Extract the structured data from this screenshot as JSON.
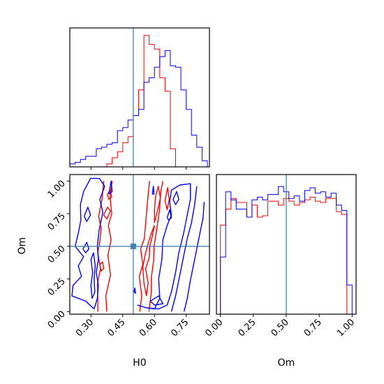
{
  "colors": {
    "series_a": "#ff0000",
    "series_b": "#0000ff",
    "truth": "#4682b4",
    "frame": "#000000"
  },
  "chart_data": [
    {
      "panel": "H0 marginal",
      "type": "histogram",
      "xlim": [
        0.2,
        0.86
      ],
      "truth": 0.5,
      "bin_edges": [
        0.2,
        0.225,
        0.25,
        0.275,
        0.3,
        0.325,
        0.35,
        0.375,
        0.4,
        0.425,
        0.45,
        0.475,
        0.5,
        0.525,
        0.55,
        0.575,
        0.6,
        0.625,
        0.65,
        0.675,
        0.7,
        0.725,
        0.75,
        0.775,
        0.8,
        0.825,
        0.85
      ],
      "series": [
        {
          "color": "red",
          "values": [
            0,
            0,
            0,
            0,
            0,
            0,
            0,
            0.02,
            0.06,
            0.1,
            0.16,
            0.2,
            0.34,
            0.51,
            0.87,
            0.81,
            0.78,
            0.59,
            0.5,
            0.12,
            0,
            0,
            0,
            0,
            0,
            0
          ]
        },
        {
          "color": "blue",
          "values": [
            0.02,
            0.03,
            0.05,
            0.07,
            0.07,
            0.12,
            0.13,
            0.15,
            0.16,
            0.24,
            0.26,
            0.31,
            0.34,
            0.38,
            0.56,
            0.59,
            0.66,
            0.73,
            0.77,
            0.67,
            0.66,
            0.51,
            0.38,
            0.21,
            0.13,
            0.04
          ]
        }
      ]
    },
    {
      "panel": "Om marginal",
      "type": "histogram",
      "xlim": [
        -0.03,
        1.03
      ],
      "xticks": [
        "0.00",
        "0.25",
        "0.50",
        "0.75",
        "1.00"
      ],
      "xlabel": "Om",
      "truth": 0.5,
      "bin_edges": [
        0,
        0.04,
        0.08,
        0.12,
        0.16,
        0.2,
        0.24,
        0.28,
        0.32,
        0.36,
        0.4,
        0.44,
        0.48,
        0.52,
        0.56,
        0.6,
        0.64,
        0.68,
        0.72,
        0.76,
        0.8,
        0.84,
        0.88,
        0.92,
        0.96,
        1.0
      ],
      "series": [
        {
          "color": "red",
          "values": [
            0.67,
            0.79,
            0.87,
            0.84,
            0.84,
            0.73,
            0.82,
            0.73,
            0.74,
            0.85,
            0.85,
            0.82,
            0.87,
            0.85,
            0.82,
            0.84,
            0.86,
            0.88,
            0.85,
            0.84,
            0.87,
            0.87,
            0.77,
            0.75,
            0.0
          ]
        },
        {
          "color": "blue",
          "values": [
            0.43,
            0.92,
            0.86,
            0.79,
            0.79,
            0.73,
            0.86,
            0.88,
            0.86,
            0.9,
            0.9,
            0.96,
            0.92,
            0.87,
            0.89,
            0.85,
            0.93,
            0.95,
            0.91,
            0.92,
            0.88,
            0.91,
            0.82,
            0.78,
            0.22
          ]
        }
      ]
    },
    {
      "panel": "H0 vs Om",
      "type": "contour",
      "xlim": [
        0.2,
        0.86
      ],
      "ylim": [
        -0.02,
        1.05
      ],
      "xticks": [
        "0.30",
        "0.45",
        "0.60",
        "0.75"
      ],
      "yticks": [
        "0.00",
        "0.25",
        "0.50",
        "0.75",
        "1.00"
      ],
      "xlabel": "H0",
      "ylabel": "Om",
      "truth": [
        0.5,
        0.5
      ],
      "series": [
        {
          "color": "red",
          "contours": [
            [
              [
                0.332,
                0
              ],
              [
                0.332,
                0.12
              ],
              [
                0.33,
                0.21
              ],
              [
                0.345,
                0.33
              ],
              [
                0.332,
                0.45
              ],
              [
                0.343,
                0.55
              ],
              [
                0.348,
                0.64
              ],
              [
                0.336,
                0.73
              ],
              [
                0.352,
                0.86
              ],
              [
                0.36,
                1.0
              ]
            ],
            [
              [
                0.375,
                0
              ],
              [
                0.37,
                0.12
              ],
              [
                0.392,
                0.28
              ],
              [
                0.38,
                0.43
              ],
              [
                0.395,
                0.55
              ],
              [
                0.382,
                0.66
              ],
              [
                0.398,
                0.75
              ],
              [
                0.39,
                0.88
              ],
              [
                0.4,
                1.0
              ]
            ],
            [
              [
                0.36,
                0.74
              ],
              [
                0.378,
                0.8
              ],
              [
                0.392,
                0.77
              ],
              [
                0.375,
                0.71
              ],
              [
                0.36,
                0.74
              ]
            ],
            [
              [
                0.378,
                0.9
              ],
              [
                0.39,
                0.93
              ],
              [
                0.398,
                0.88
              ],
              [
                0.384,
                0.86
              ],
              [
                0.378,
                0.9
              ]
            ],
            [
              [
                0.342,
                0.36
              ],
              [
                0.355,
                0.38
              ],
              [
                0.36,
                0.33
              ],
              [
                0.348,
                0.31
              ],
              [
                0.342,
                0.36
              ]
            ],
            [
              [
                0.53,
                0
              ],
              [
                0.54,
                0.12
              ],
              [
                0.528,
                0.27
              ],
              [
                0.545,
                0.36
              ],
              [
                0.535,
                0.48
              ],
              [
                0.552,
                0.56
              ],
              [
                0.558,
                0.67
              ],
              [
                0.567,
                0.84
              ],
              [
                0.577,
                1.0
              ]
            ],
            [
              [
                0.574,
                0
              ],
              [
                0.585,
                0.15
              ],
              [
                0.585,
                0.26
              ],
              [
                0.596,
                0.39
              ],
              [
                0.598,
                0.5
              ],
              [
                0.61,
                0.62
              ],
              [
                0.624,
                0.78
              ],
              [
                0.63,
                0.92
              ],
              [
                0.64,
                1.0
              ]
            ],
            [
              [
                0.562,
                0.12
              ],
              [
                0.57,
                0.22
              ],
              [
                0.558,
                0.33
              ],
              [
                0.575,
                0.41
              ],
              [
                0.578,
                0.5
              ],
              [
                0.59,
                0.58
              ],
              [
                0.6,
                0.66
              ],
              [
                0.585,
                0.6
              ],
              [
                0.57,
                0.52
              ],
              [
                0.555,
                0.43
              ],
              [
                0.545,
                0.34
              ],
              [
                0.55,
                0.22
              ],
              [
                0.562,
                0.12
              ]
            ],
            [
              [
                0.6,
                0.68
              ],
              [
                0.615,
                0.78
              ],
              [
                0.628,
                0.87
              ],
              [
                0.618,
                0.96
              ],
              [
                0.605,
                0.88
              ],
              [
                0.6,
                0.78
              ],
              [
                0.6,
                0.68
              ]
            ],
            [
              [
                0.65,
                0.85
              ],
              [
                0.662,
                0.95
              ],
              [
                0.67,
                0.86
              ],
              [
                0.66,
                0.78
              ],
              [
                0.65,
                0.85
              ]
            ]
          ]
        },
        {
          "color": "blue",
          "contours": [
            [
              [
                0.315,
                0.02
              ],
              [
                0.275,
                0.08
              ],
              [
                0.21,
                0.12
              ],
              [
                0.215,
                0.2
              ],
              [
                0.255,
                0.27
              ],
              [
                0.24,
                0.35
              ],
              [
                0.265,
                0.42
              ],
              [
                0.225,
                0.5
              ],
              [
                0.24,
                0.6
              ],
              [
                0.252,
                0.7
              ],
              [
                0.25,
                0.82
              ],
              [
                0.265,
                0.92
              ],
              [
                0.298,
                1.02
              ],
              [
                0.34,
                1.02
              ],
              [
                0.365,
                0.96
              ],
              [
                0.342,
                0.86
              ],
              [
                0.356,
                0.76
              ],
              [
                0.338,
                0.62
              ],
              [
                0.33,
                0.5
              ],
              [
                0.335,
                0.4
              ],
              [
                0.325,
                0.3
              ],
              [
                0.335,
                0.2
              ],
              [
                0.33,
                0.1
              ],
              [
                0.315,
                0.02
              ]
            ],
            [
              [
                0.305,
                0.1
              ],
              [
                0.3,
                0.2
              ],
              [
                0.308,
                0.3
              ],
              [
                0.3,
                0.4
              ],
              [
                0.312,
                0.45
              ],
              [
                0.32,
                0.35
              ],
              [
                0.315,
                0.25
              ],
              [
                0.318,
                0.15
              ],
              [
                0.305,
                0.1
              ]
            ],
            [
              [
                0.262,
                0.48
              ],
              [
                0.28,
                0.53
              ],
              [
                0.29,
                0.48
              ],
              [
                0.275,
                0.45
              ],
              [
                0.262,
                0.48
              ]
            ],
            [
              [
                0.268,
                0.73
              ],
              [
                0.285,
                0.8
              ],
              [
                0.298,
                0.74
              ],
              [
                0.28,
                0.69
              ],
              [
                0.268,
                0.73
              ]
            ],
            [
              [
                0.385,
                0.9
              ],
              [
                0.395,
                1.0
              ],
              [
                0.4,
                0.92
              ],
              [
                0.385,
                0.9
              ]
            ],
            [
              [
                0.52,
                0.05
              ],
              [
                0.56,
                0.03
              ],
              [
                0.6,
                0.02
              ],
              [
                0.625,
                0.1
              ],
              [
                0.62,
                0.25
              ],
              [
                0.635,
                0.4
              ],
              [
                0.64,
                0.55
              ],
              [
                0.66,
                0.66
              ],
              [
                0.68,
                0.74
              ],
              [
                0.672,
                0.84
              ],
              [
                0.68,
                0.93
              ],
              [
                0.72,
                0.97
              ],
              [
                0.77,
                0.98
              ],
              [
                0.77,
                0.86
              ],
              [
                0.755,
                0.74
              ],
              [
                0.738,
                0.6
              ],
              [
                0.715,
                0.45
              ],
              [
                0.7,
                0.3
              ],
              [
                0.68,
                0.15
              ],
              [
                0.66,
                0.05
              ],
              [
                0.62,
                0.02
              ],
              [
                0.56,
                0.03
              ],
              [
                0.52,
                0.05
              ]
            ],
            [
              [
                0.58,
                0.08
              ],
              [
                0.62,
                0.12
              ],
              [
                0.64,
                0.06
              ],
              [
                0.6,
                0.05
              ],
              [
                0.58,
                0.08
              ]
            ],
            [
              [
                0.688,
                0.86
              ],
              [
                0.705,
                0.92
              ],
              [
                0.715,
                0.86
              ],
              [
                0.7,
                0.82
              ],
              [
                0.688,
                0.86
              ]
            ],
            [
              [
                0.66,
                0.72
              ],
              [
                0.672,
                0.78
              ],
              [
                0.68,
                0.72
              ],
              [
                0.668,
                0.7
              ],
              [
                0.66,
                0.72
              ]
            ],
            [
              [
                0.68,
                0
              ],
              [
                0.7,
                0.12
              ],
              [
                0.72,
                0.28
              ],
              [
                0.74,
                0.44
              ],
              [
                0.755,
                0.56
              ],
              [
                0.775,
                0.68
              ],
              [
                0.79,
                0.82
              ],
              [
                0.8,
                0.96
              ]
            ],
            [
              [
                0.74,
                0
              ],
              [
                0.755,
                0.1
              ],
              [
                0.77,
                0.24
              ],
              [
                0.79,
                0.4
              ],
              [
                0.81,
                0.56
              ],
              [
                0.83,
                0.72
              ],
              [
                0.835,
                0.84
              ]
            ],
            [
              [
                0.59,
                0.9
              ],
              [
                0.595,
                0.96
              ],
              [
                0.598,
                0.9
              ],
              [
                0.59,
                0.9
              ]
            ],
            [
              [
                0.503,
                0.15
              ],
              [
                0.508,
                0.18
              ],
              [
                0.51,
                0.14
              ],
              [
                0.503,
                0.15
              ]
            ]
          ]
        }
      ]
    }
  ]
}
